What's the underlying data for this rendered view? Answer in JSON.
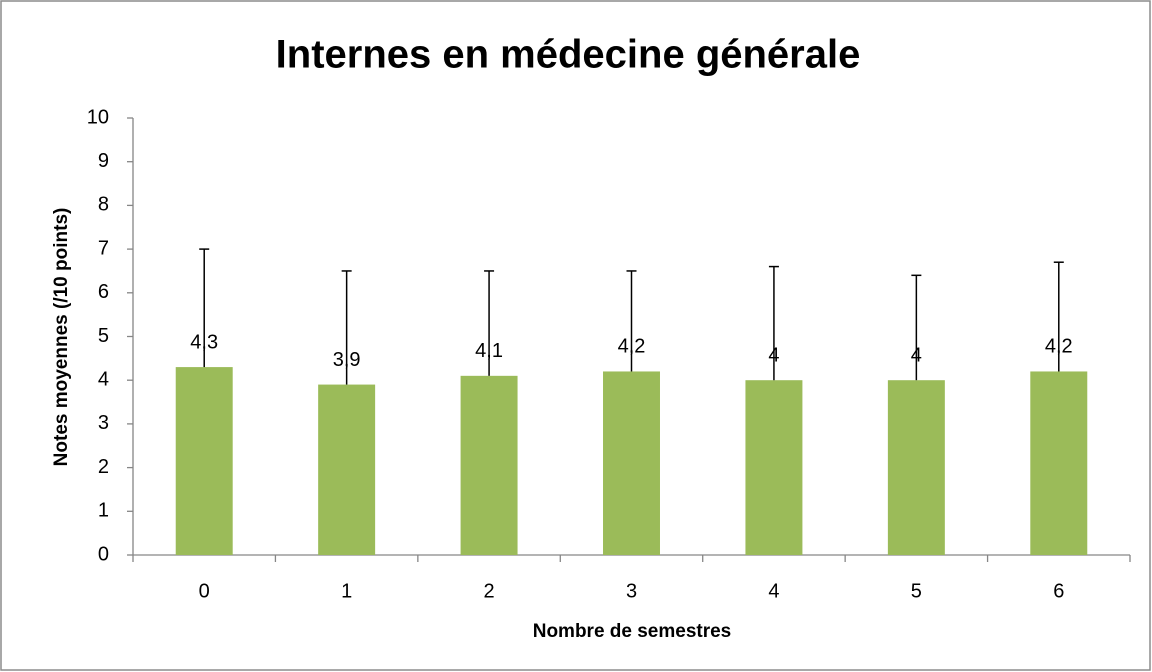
{
  "chart_data": {
    "type": "bar",
    "title": "Internes en médecine générale",
    "x_label": "Nombre de semestres",
    "y_label": "Notes moyennes (/10 points)",
    "categories": [
      "0",
      "1",
      "2",
      "3",
      "4",
      "5",
      "6"
    ],
    "values": [
      4.3,
      3.9,
      4.1,
      4.2,
      4,
      4,
      4.2
    ],
    "value_labels": [
      "4,3",
      "3,9",
      "4,1",
      "4,2",
      "4",
      "4",
      "4,2"
    ],
    "errors": [
      2.7,
      2.6,
      2.4,
      2.3,
      2.6,
      2.4,
      2.5
    ],
    "color": "#9bbb59",
    "ylim": [
      0,
      10
    ],
    "yticks": [
      0,
      1,
      2,
      3,
      4,
      5,
      6,
      7,
      8,
      9,
      10
    ],
    "grid": false
  }
}
